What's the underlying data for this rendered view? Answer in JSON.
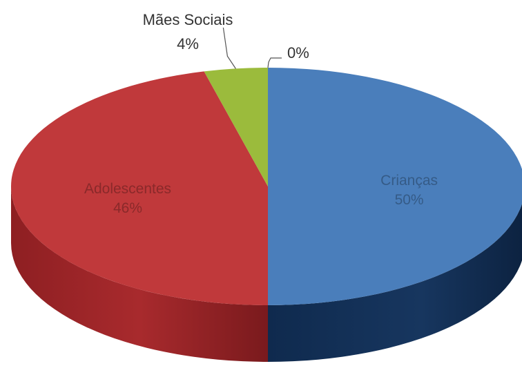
{
  "chart_data": {
    "type": "pie",
    "style": "3d",
    "title": "",
    "slices": [
      {
        "label": "Crianças",
        "value": 50,
        "value_text": "50%",
        "color": "#4a7ebb",
        "label_position": "inside"
      },
      {
        "label": "Adolescentes",
        "value": 46,
        "value_text": "46%",
        "color": "#c0393b",
        "label_position": "inside"
      },
      {
        "label": "Mães Sociais",
        "value": 4,
        "value_text": "4%",
        "color": "#9bbb3c",
        "label_position": "outside"
      },
      {
        "label": "",
        "value": 0,
        "value_text": "0%",
        "color": "#7f7f7f",
        "label_position": "outside"
      }
    ],
    "legend": "none"
  }
}
